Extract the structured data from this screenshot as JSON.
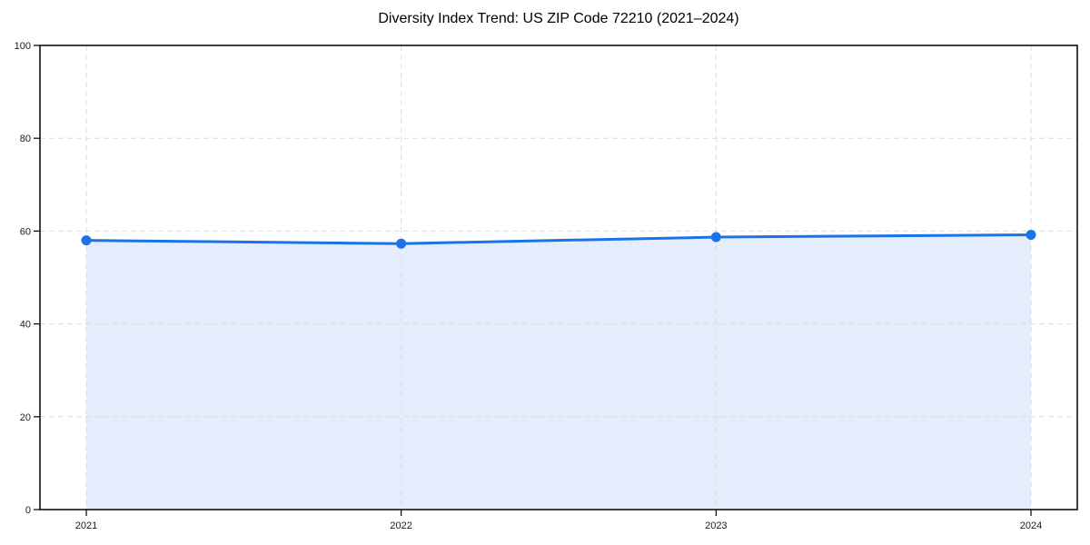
{
  "figure": {
    "background": "#ffffff"
  },
  "chart_data": {
    "type": "area",
    "title": "Diversity Index Trend: US ZIP Code 72210 (2021–2024)",
    "x": [
      "2021",
      "2022",
      "2023",
      "2024"
    ],
    "values": [
      58.0,
      57.3,
      58.7,
      59.2
    ],
    "xlabel": "",
    "ylabel": "",
    "ylim": [
      0,
      100
    ],
    "yticks": [
      0,
      20,
      40,
      60,
      80,
      100
    ],
    "grid": true,
    "grid_style": "dashed",
    "legend": "none",
    "markers": true,
    "colors": {
      "line": "#1a73e8",
      "marker": "#1a73e8",
      "fill": "#e4edfc",
      "grid": "#dcdcdc",
      "spine": "#000000",
      "tick_label": "#1a1a1a",
      "title": "#000000"
    }
  }
}
